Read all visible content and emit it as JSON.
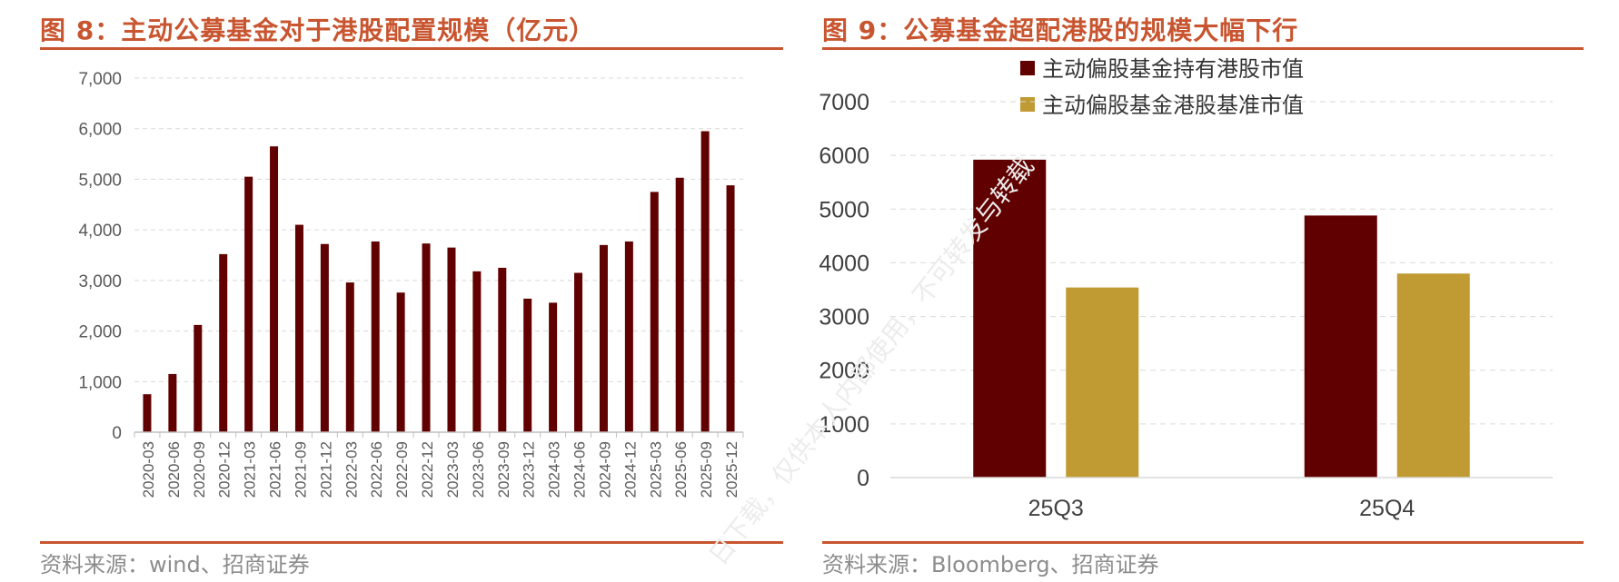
{
  "watermark": "日下载，仅供本人内部使用，不可转发与转载",
  "colors": {
    "accent": "#c8552f",
    "bar_dark": "#610000",
    "bar_gold": "#c09a33",
    "grid": "#d9d9d9",
    "axis_text_left": "#595959",
    "axis_text_right": "#404040"
  },
  "figures": [
    {
      "title": "图 8：主动公募基金对于港股配置规模（亿元）",
      "source": "资料来源：wind、招商证券"
    },
    {
      "title": "图 9：公募基金超配港股的规模大幅下行",
      "source": "资料来源：Bloomberg、招商证券"
    }
  ],
  "chart_data": [
    {
      "type": "bar",
      "title": "主动公募基金对于港股配置规模（亿元）",
      "xlabel": "",
      "ylabel": "",
      "ylim": [
        0,
        7000
      ],
      "ytick_values": [
        0,
        1000,
        2000,
        3000,
        4000,
        5000,
        6000,
        7000
      ],
      "ytick_labels": [
        "0",
        "1,000",
        "2,000",
        "3,000",
        "4,000",
        "5,000",
        "6,000",
        "7,000"
      ],
      "grid": true,
      "legend": "none",
      "categories": [
        "2020-03",
        "2020-06",
        "2020-09",
        "2020-12",
        "2021-03",
        "2021-06",
        "2021-09",
        "2021-12",
        "2022-03",
        "2022-06",
        "2022-09",
        "2022-12",
        "2023-03",
        "2023-06",
        "2023-09",
        "2023-12",
        "2024-03",
        "2024-06",
        "2024-09",
        "2024-12",
        "2025-03",
        "2025-06",
        "2025-09",
        "2025-12"
      ],
      "values": [
        750,
        1150,
        2120,
        3520,
        5050,
        5650,
        4100,
        3720,
        2960,
        3770,
        2760,
        3730,
        3650,
        3180,
        3250,
        2640,
        2560,
        3150,
        3700,
        3770,
        4750,
        5030,
        5950,
        4880
      ]
    },
    {
      "type": "bar",
      "title": "公募基金超配港股的规模大幅下行",
      "xlabel": "",
      "ylabel": "",
      "ylim": [
        0,
        7000
      ],
      "ytick_values": [
        0,
        1000,
        2000,
        3000,
        4000,
        5000,
        6000,
        7000
      ],
      "ytick_labels": [
        "0",
        "1000",
        "2000",
        "3000",
        "4000",
        "5000",
        "6000",
        "7000"
      ],
      "grid": true,
      "legend": "top-center",
      "categories": [
        "25Q3",
        "25Q4"
      ],
      "series": [
        {
          "name": "主动偏股基金持有港股市值",
          "values": [
            5920,
            4880
          ],
          "color": "#610000"
        },
        {
          "name": "主动偏股基金港股基准市值",
          "values": [
            3540,
            3800
          ],
          "color": "#c09a33"
        }
      ]
    }
  ]
}
